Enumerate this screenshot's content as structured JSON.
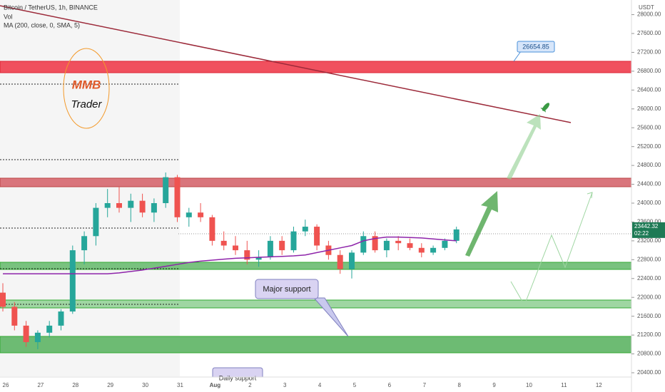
{
  "header": {
    "symbol": "Bitcoin / TetherUS, 1h, BINANCE",
    "volume": "Vol",
    "indicator": "MA (200, close, 0, SMA, 5)"
  },
  "price_axis": {
    "unit": "USDT",
    "ylim": [
      20300,
      28100
    ],
    "ticks": [
      {
        "value": 28000,
        "label": "28000.00"
      },
      {
        "value": 27600,
        "label": "27600.00"
      },
      {
        "value": 27200,
        "label": "27200.00"
      },
      {
        "value": 26800,
        "label": "26800.00"
      },
      {
        "value": 26400,
        "label": "26400.00"
      },
      {
        "value": 26000,
        "label": "26000.00"
      },
      {
        "value": 25600,
        "label": "25600.00"
      },
      {
        "value": 25200,
        "label": "25200.00"
      },
      {
        "value": 24800,
        "label": "24800.00"
      },
      {
        "value": 24400,
        "label": "24400.00"
      },
      {
        "value": 24000,
        "label": "24000.00"
      },
      {
        "value": 23600,
        "label": "23600.00"
      },
      {
        "value": 23200,
        "label": "23200.00"
      },
      {
        "value": 22800,
        "label": "22800.00"
      },
      {
        "value": 22400,
        "label": "22400.00"
      },
      {
        "value": 22000,
        "label": "22000.00"
      },
      {
        "value": 21600,
        "label": "21600.00"
      },
      {
        "value": 21200,
        "label": "21200.00"
      },
      {
        "value": 20800,
        "label": "20800.00"
      },
      {
        "value": 20400,
        "label": "20400.00"
      }
    ],
    "current_price": 23442.32,
    "countdown": "02:22"
  },
  "date_axis": [
    "26",
    "27",
    "28",
    "29",
    "30",
    "31",
    "Aug",
    "2",
    "3",
    "4",
    "5",
    "6",
    "7",
    "8",
    "9",
    "10",
    "11",
    "12"
  ],
  "candles": [
    [
      22100,
      22300,
      21700,
      21800
    ],
    [
      21800,
      21900,
      21300,
      21400
    ],
    [
      21400,
      21500,
      20950,
      21050
    ],
    [
      21050,
      21300,
      20900,
      21250
    ],
    [
      21250,
      21500,
      21150,
      21400
    ],
    [
      21400,
      21750,
      21300,
      21700
    ],
    [
      21700,
      23100,
      21650,
      23000
    ],
    [
      23000,
      23400,
      22700,
      23300
    ],
    [
      23300,
      24000,
      23100,
      23900
    ],
    [
      23900,
      24300,
      23700,
      24000
    ],
    [
      24000,
      24350,
      23800,
      23900
    ],
    [
      23900,
      24200,
      23600,
      24050
    ],
    [
      24050,
      24200,
      23700,
      23800
    ],
    [
      23800,
      24100,
      23600,
      24000
    ],
    [
      24000,
      24650,
      23900,
      24550
    ],
    [
      24550,
      24600,
      23600,
      23700
    ],
    [
      23700,
      23900,
      23500,
      23800
    ],
    [
      23800,
      24000,
      23600,
      23700
    ],
    [
      23700,
      23750,
      23100,
      23200
    ],
    [
      23200,
      23400,
      23000,
      23100
    ],
    [
      23100,
      23300,
      22900,
      23000
    ],
    [
      23000,
      23200,
      22700,
      22800
    ],
    [
      22800,
      23000,
      22650,
      22850
    ],
    [
      22850,
      23300,
      22800,
      23200
    ],
    [
      23200,
      23300,
      22900,
      23000
    ],
    [
      23000,
      23500,
      22950,
      23400
    ],
    [
      23400,
      23650,
      23300,
      23500
    ],
    [
      23500,
      23550,
      23000,
      23100
    ],
    [
      23100,
      23200,
      22800,
      22900
    ],
    [
      22900,
      23000,
      22500,
      22600
    ],
    [
      22600,
      23000,
      22400,
      22950
    ],
    [
      22950,
      23400,
      22900,
      23300
    ],
    [
      23300,
      23400,
      22950,
      23000
    ],
    [
      23000,
      23250,
      22850,
      23200
    ],
    [
      23200,
      23300,
      23000,
      23150
    ],
    [
      23150,
      23250,
      23000,
      23050
    ],
    [
      23050,
      23150,
      22850,
      22950
    ],
    [
      22950,
      23100,
      22900,
      23050
    ],
    [
      23050,
      23250,
      23000,
      23200
    ],
    [
      23200,
      23500,
      23150,
      23442.32
    ]
  ],
  "ma": [
    22500,
    22500,
    22500,
    22500,
    22500,
    22500,
    22500,
    22500,
    22500,
    22500,
    22520,
    22550,
    22580,
    22620,
    22660,
    22700,
    22740,
    22770,
    22790,
    22810,
    22830,
    22840,
    22850,
    22860,
    22870,
    22880,
    22900,
    22950,
    23000,
    23050,
    23100,
    23200,
    23250,
    23280,
    23280,
    23270,
    23260,
    23240,
    23220,
    23200
  ],
  "annotations": {
    "price_callout": "26654.85",
    "major_support": "Major support",
    "daily_support": "Daily support",
    "logo_top": "MMB",
    "logo_bottom": "Trader"
  }
}
